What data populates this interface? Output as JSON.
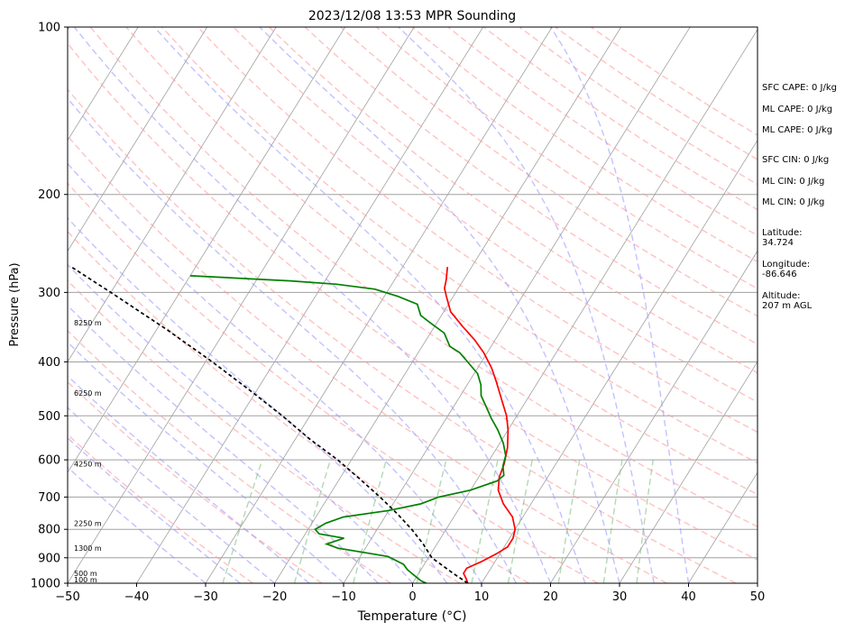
{
  "chart_data": {
    "type": "line",
    "title": "2023/12/08 13:53 MPR Sounding",
    "xlabel": "Temperature (°C)",
    "ylabel": "Pressure (hPa)",
    "xlim": [
      -50,
      50
    ],
    "ylim": [
      1000,
      100
    ],
    "y_scale": "log",
    "skew": "skew-T log-P",
    "grid": true,
    "x_ticks": [
      "−50",
      "−40",
      "−30",
      "−20",
      "−10",
      "0",
      "10",
      "20",
      "30",
      "40",
      "50"
    ],
    "y_ticks": [
      "100",
      "200",
      "300",
      "400",
      "500",
      "600",
      "700",
      "800",
      "900",
      "1000"
    ],
    "height_labels": [
      {
        "p": 985,
        "label": "100 m"
      },
      {
        "p": 960,
        "label": "500 m"
      },
      {
        "p": 865,
        "label": "1300 m"
      },
      {
        "p": 780,
        "label": "2250 m"
      },
      {
        "p": 610,
        "label": "4250 m"
      },
      {
        "p": 455,
        "label": "6250 m"
      },
      {
        "p": 340,
        "label": "8250 m"
      }
    ],
    "series": [
      {
        "name": "Temperature",
        "color": "#ff0000",
        "points": [
          [
            8,
            1000
          ],
          [
            7.5,
            985
          ],
          [
            6.5,
            960
          ],
          [
            6.5,
            940
          ],
          [
            8,
            915
          ],
          [
            9.5,
            885
          ],
          [
            10.5,
            860
          ],
          [
            10.5,
            830
          ],
          [
            10,
            800
          ],
          [
            8.5,
            760
          ],
          [
            6,
            720
          ],
          [
            4,
            680
          ],
          [
            3,
            645
          ],
          [
            2.5,
            610
          ],
          [
            1.5,
            570
          ],
          [
            0,
            530
          ],
          [
            -1.5,
            500
          ],
          [
            -3.5,
            470
          ],
          [
            -6,
            435
          ],
          [
            -8,
            410
          ],
          [
            -10.5,
            385
          ],
          [
            -13,
            365
          ],
          [
            -16,
            345
          ],
          [
            -19,
            325
          ],
          [
            -21,
            305
          ],
          [
            -22,
            295
          ],
          [
            -22.5,
            285
          ],
          [
            -23.5,
            270
          ]
        ]
      },
      {
        "name": "Dewpoint",
        "color": "#008000",
        "points": [
          [
            2,
            1000
          ],
          [
            1,
            990
          ],
          [
            0,
            975
          ],
          [
            -1,
            960
          ],
          [
            -2,
            945
          ],
          [
            -3,
            925
          ],
          [
            -6,
            895
          ],
          [
            -10,
            880
          ],
          [
            -14,
            865
          ],
          [
            -16,
            850
          ],
          [
            -14,
            830
          ],
          [
            -18,
            815
          ],
          [
            -19,
            800
          ],
          [
            -18,
            780
          ],
          [
            -16,
            760
          ],
          [
            -10,
            740
          ],
          [
            -6,
            720
          ],
          [
            -4,
            700
          ],
          [
            0,
            680
          ],
          [
            3,
            655
          ],
          [
            3.5,
            640
          ],
          [
            2.5,
            615
          ],
          [
            2,
            590
          ],
          [
            0.5,
            560
          ],
          [
            -1.5,
            530
          ],
          [
            -3.5,
            505
          ],
          [
            -5,
            485
          ],
          [
            -7,
            460
          ],
          [
            -8,
            440
          ],
          [
            -9.5,
            420
          ],
          [
            -12,
            400
          ],
          [
            -14,
            385
          ],
          [
            -16,
            375
          ],
          [
            -18,
            355
          ],
          [
            -21,
            340
          ],
          [
            -23,
            330
          ],
          [
            -24.5,
            315
          ],
          [
            -28,
            305
          ],
          [
            -32,
            296
          ],
          [
            -38,
            290
          ],
          [
            -45,
            286
          ],
          [
            -60,
            280
          ]
        ]
      },
      {
        "name": "Parcel",
        "color": "#000000",
        "dashed": true,
        "points": [
          [
            8,
            1000
          ],
          [
            5,
            960
          ],
          [
            2.4,
            925
          ],
          [
            0.5,
            900
          ],
          [
            -2,
            850
          ],
          [
            -5,
            800
          ],
          [
            -8.5,
            750
          ],
          [
            -12.5,
            700
          ],
          [
            -17,
            650
          ],
          [
            -22,
            600
          ],
          [
            -28,
            550
          ],
          [
            -34,
            500
          ],
          [
            -41,
            450
          ],
          [
            -49,
            400
          ],
          [
            -58.5,
            350
          ],
          [
            -70,
            300
          ],
          [
            -78,
            270
          ]
        ]
      }
    ]
  },
  "side_panel": {
    "sfc_cape": "SFC CAPE: 0 J/kg",
    "ml_cape_1": "ML CAPE: 0 J/kg",
    "ml_cape_2": "ML CAPE: 0 J/kg",
    "sfc_cin": "SFC CIN: 0 J/kg",
    "ml_cin_1": "ML CIN: 0 J/kg",
    "ml_cin_2": "ML CIN: 0 J/kg",
    "latitude_label": "Latitude:",
    "latitude_value": "34.724",
    "longitude_label": "Longitude:",
    "longitude_value": "-86.646",
    "altitude_label": "Altitude:",
    "altitude_value": "207 m AGL"
  },
  "colors": {
    "dry_adiabat": "#ff9999",
    "moist_adiabat": "#9999ff",
    "mixing_ratio": "#80c080",
    "isotherm": "#a0a0a0"
  }
}
